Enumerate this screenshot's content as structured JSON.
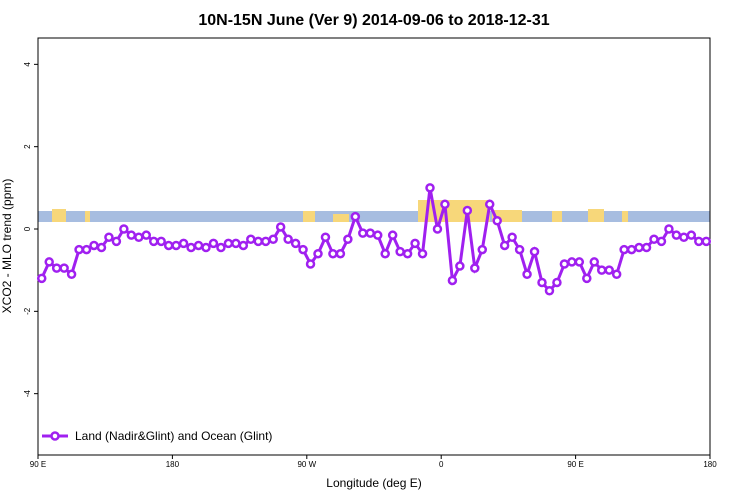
{
  "chart_data": {
    "type": "line",
    "title": "10N-15N June (Ver 9)   2014-09-06 to 2018-12-31",
    "x_label": "Longitude (deg E)",
    "y_label": "XCO2 - MLO trend (ppm)",
    "xlim": [
      90,
      540
    ],
    "xticks": [
      {
        "value": 90,
        "label": "90 E"
      },
      {
        "value": 180,
        "label": "180"
      },
      {
        "value": 270,
        "label": "90 W"
      },
      {
        "value": 360,
        "label": "0"
      },
      {
        "value": 450,
        "label": "90 E"
      },
      {
        "value": 540,
        "label": "180"
      }
    ],
    "ylim": [
      -5.49,
      4.64
    ],
    "yticks": [
      -4,
      -2,
      0,
      2,
      4
    ],
    "legend": "bottom-left",
    "x": [
      92.5,
      97.5,
      102.5,
      107.5,
      112.5,
      117.5,
      122.5,
      127.5,
      132.5,
      137.5,
      142.5,
      147.5,
      152.5,
      157.5,
      162.5,
      167.5,
      172.5,
      177.5,
      182.5,
      187.5,
      192.5,
      197.5,
      202.5,
      207.5,
      212.5,
      217.5,
      222.5,
      227.5,
      232.5,
      237.5,
      242.5,
      247.5,
      252.5,
      257.5,
      262.5,
      267.5,
      272.5,
      277.5,
      282.5,
      287.5,
      292.5,
      297.5,
      302.5,
      307.5,
      312.5,
      317.5,
      322.5,
      327.5,
      332.5,
      337.5,
      342.5,
      347.5,
      352.5,
      357.5,
      362.5,
      367.5,
      372.5,
      377.5,
      382.5,
      387.5,
      392.5,
      397.5,
      402.5,
      407.5,
      412.5,
      417.5,
      422.5,
      427.5,
      432.5,
      437.5,
      442.5,
      447.5,
      452.5,
      457.5,
      462.5,
      467.5,
      472.5,
      477.5,
      482.5,
      487.5,
      492.5,
      497.5,
      502.5,
      507.5,
      512.5,
      517.5,
      522.5,
      527.5,
      532.5,
      537.5
    ],
    "series": [
      {
        "name": "Land (Nadir&Glint) and Ocean (Glint)",
        "color": "#a020f0",
        "values": [
          -1.2,
          -0.8,
          -0.95,
          -0.95,
          -1.1,
          -0.5,
          -0.5,
          -0.4,
          -0.45,
          -0.2,
          -0.3,
          0.0,
          -0.15,
          -0.2,
          -0.15,
          -0.3,
          -0.3,
          -0.4,
          -0.4,
          -0.35,
          -0.45,
          -0.4,
          -0.45,
          -0.35,
          -0.45,
          -0.35,
          -0.35,
          -0.4,
          -0.25,
          -0.3,
          -0.3,
          -0.25,
          0.05,
          -0.25,
          -0.35,
          -0.5,
          -0.85,
          -0.6,
          -0.2,
          -0.6,
          -0.6,
          -0.25,
          0.3,
          -0.1,
          -0.1,
          -0.15,
          -0.6,
          -0.15,
          -0.55,
          -0.6,
          -0.35,
          -0.6,
          1.0,
          0.0,
          0.6,
          -1.25,
          -0.9,
          0.45,
          -0.95,
          -0.5,
          0.6,
          0.2,
          -0.4,
          -0.2,
          -0.5,
          -1.1,
          -0.55,
          -1.3,
          -1.5,
          -1.3,
          -0.85,
          -0.8,
          -0.8,
          -1.2,
          -0.8,
          -1.0,
          -1.0,
          -1.1,
          -0.5,
          -0.5,
          -0.45,
          -0.45,
          -0.25,
          -0.3,
          0.0,
          -0.15,
          -0.2,
          -0.15,
          -0.3,
          -0.3
        ]
      }
    ]
  }
}
